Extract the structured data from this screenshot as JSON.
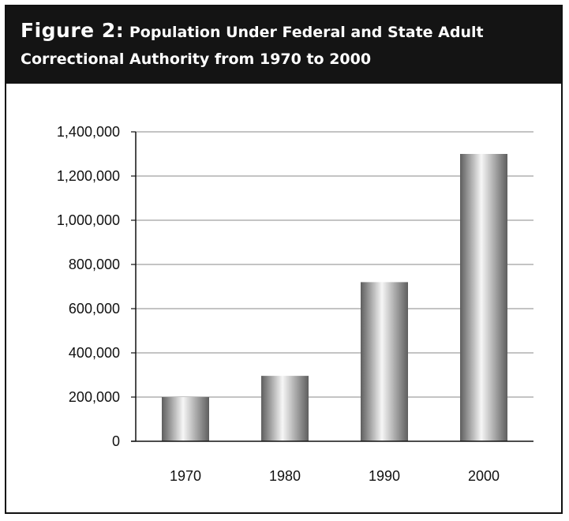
{
  "header": {
    "figure_label": "Figure 2:",
    "title_line1": "Population Under Federal and State Adult",
    "title_line2": "Correctional Authority from 1970 to 2000"
  },
  "colors": {
    "header_bg": "#141414",
    "header_text": "#ffffff",
    "bar_dark": "#5e5e5e",
    "bar_light": "#f6f6f6",
    "gridline": "#888888"
  },
  "chart_data": {
    "type": "bar",
    "title": "Population Under Federal and State Adult Correctional Authority from 1970 to 2000",
    "xlabel": "",
    "ylabel": "",
    "categories": [
      "1970",
      "1980",
      "1990",
      "2000"
    ],
    "values": [
      200000,
      296000,
      720000,
      1300000
    ],
    "ylim": [
      0,
      1400000
    ],
    "yticks": [
      0,
      200000,
      400000,
      600000,
      800000,
      1000000,
      1200000,
      1400000
    ],
    "ytick_labels": [
      "0",
      "200,000",
      "400,000",
      "600,000",
      "800,000",
      "1,000,000",
      "1,200,000",
      "1,400,000"
    ],
    "grid": true,
    "legend": "none"
  }
}
